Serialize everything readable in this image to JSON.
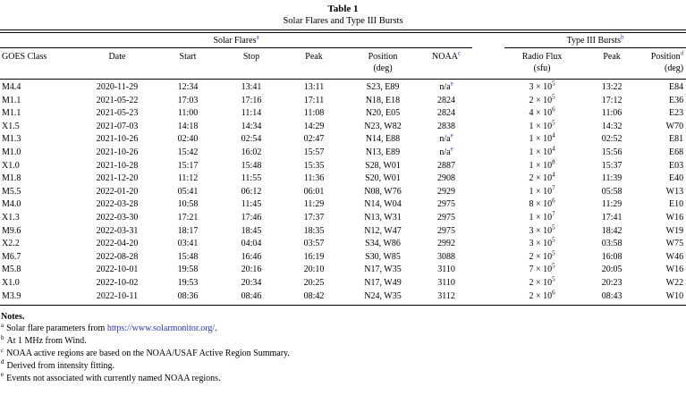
{
  "title": "Table 1",
  "subtitle": "Solar Flares and Type III Bursts",
  "colors": {
    "footnote_link_blue": "#2d35d4"
  },
  "groups": {
    "solar_flares": {
      "label": "Solar Flares",
      "sup": "a"
    },
    "type_iii_bursts": {
      "label": "Type III Bursts",
      "sup": "b"
    }
  },
  "columns": {
    "goes_class": "GOES Class",
    "date": "Date",
    "start": "Start",
    "stop": "Stop",
    "peak": "Peak",
    "position": {
      "line1": "Position",
      "line2": "(deg)"
    },
    "noaa": {
      "label": "NOAA",
      "sup": "c"
    },
    "radio_flux": {
      "line1": "Radio Flux",
      "line2": "(sfu)"
    },
    "burst_peak": "Peak",
    "burst_position": {
      "line1": "Position",
      "sup": "d",
      "line2": "(deg)"
    }
  },
  "rows": [
    {
      "goes": "M4.4",
      "date": "2020-11-29",
      "start": "12:34",
      "stop": "13:41",
      "peak": "13:11",
      "position": "S23, E89",
      "noaa": "n/a",
      "noaa_sup": "e",
      "flux_m": "3",
      "flux_e": "5",
      "burst_peak": "13:22",
      "burst_pos": "E84"
    },
    {
      "goes": "M1.1",
      "date": "2021-05-22",
      "start": "17:03",
      "stop": "17:16",
      "peak": "17:11",
      "position": "N18, E18",
      "noaa": "2824",
      "flux_m": "2",
      "flux_e": "5",
      "burst_peak": "17:12",
      "burst_pos": "E36"
    },
    {
      "goes": "M1.1",
      "date": "2021-05-23",
      "start": "11:00",
      "stop": "11:14",
      "peak": "11:08",
      "position": "N20, E05",
      "noaa": "2824",
      "flux_m": "4",
      "flux_e": "6",
      "burst_peak": "11:06",
      "burst_pos": "E23"
    },
    {
      "goes": "X1.5",
      "date": "2021-07-03",
      "start": "14:18",
      "stop": "14:34",
      "peak": "14:29",
      "position": "N23, W82",
      "noaa": "2838",
      "flux_m": "1",
      "flux_e": "5",
      "burst_peak": "14:32",
      "burst_pos": "W70"
    },
    {
      "goes": "M1.3",
      "date": "2021-10-26",
      "start": "02:40",
      "stop": "02:54",
      "peak": "02:47",
      "position": "N14, E88",
      "noaa": "n/a",
      "noaa_sup": "e",
      "flux_m": "1",
      "flux_e": "4",
      "burst_peak": "02:52",
      "burst_pos": "E81"
    },
    {
      "goes": "M1.0",
      "date": "2021-10-26",
      "start": "15:42",
      "stop": "16:02",
      "peak": "15:57",
      "position": "N13, E89",
      "noaa": "n/a",
      "noaa_sup": "e",
      "flux_m": "1",
      "flux_e": "4",
      "burst_peak": "15:56",
      "burst_pos": "E68"
    },
    {
      "goes": "X1.0",
      "date": "2021-10-28",
      "start": "15:17",
      "stop": "15:48",
      "peak": "15:35",
      "position": "S28, W01",
      "noaa": "2887",
      "flux_m": "1",
      "flux_e": "8",
      "burst_peak": "15:37",
      "burst_pos": "E03"
    },
    {
      "goes": "M1.8",
      "date": "2021-12-20",
      "start": "11:12",
      "stop": "11:55",
      "peak": "11:36",
      "position": "S20, W01",
      "noaa": "2908",
      "flux_m": "2",
      "flux_e": "4",
      "burst_peak": "11:39",
      "burst_pos": "E40"
    },
    {
      "goes": "M5.5",
      "date": "2022-01-20",
      "start": "05:41",
      "stop": "06:12",
      "peak": "06:01",
      "position": "N08, W76",
      "noaa": "2929",
      "flux_m": "1",
      "flux_e": "7",
      "burst_peak": "05:58",
      "burst_pos": "W13"
    },
    {
      "goes": "M4.0",
      "date": "2022-03-28",
      "start": "10:58",
      "stop": "11:45",
      "peak": "11:29",
      "position": "N14, W04",
      "noaa": "2975",
      "flux_m": "8",
      "flux_e": "6",
      "burst_peak": "11:29",
      "burst_pos": "E10"
    },
    {
      "goes": "X1.3",
      "date": "2022-03-30",
      "start": "17:21",
      "stop": "17:46",
      "peak": "17:37",
      "position": "N13, W31",
      "noaa": "2975",
      "flux_m": "1",
      "flux_e": "7",
      "burst_peak": "17:41",
      "burst_pos": "W16"
    },
    {
      "goes": "M9.6",
      "date": "2022-03-31",
      "start": "18:17",
      "stop": "18:45",
      "peak": "18:35",
      "position": "N12, W47",
      "noaa": "2975",
      "flux_m": "3",
      "flux_e": "5",
      "burst_peak": "18:42",
      "burst_pos": "W19"
    },
    {
      "goes": "X2.2",
      "date": "2022-04-20",
      "start": "03:41",
      "stop": "04:04",
      "peak": "03:57",
      "position": "S34, W86",
      "noaa": "2992",
      "flux_m": "3",
      "flux_e": "5",
      "burst_peak": "03:58",
      "burst_pos": "W75"
    },
    {
      "goes": "M6.7",
      "date": "2022-08-28",
      "start": "15:48",
      "stop": "16:46",
      "peak": "16:19",
      "position": "S30, W85",
      "noaa": "3088",
      "flux_m": "2",
      "flux_e": "5",
      "burst_peak": "16:08",
      "burst_pos": "W46"
    },
    {
      "goes": "M5.8",
      "date": "2022-10-01",
      "start": "19:58",
      "stop": "20:16",
      "peak": "20:10",
      "position": "N17, W35",
      "noaa": "3110",
      "flux_m": "7",
      "flux_e": "5",
      "burst_peak": "20:05",
      "burst_pos": "W16"
    },
    {
      "goes": "X1.0",
      "date": "2022-10-02",
      "start": "19:53",
      "stop": "20:34",
      "peak": "20:25",
      "position": "N17, W49",
      "noaa": "3110",
      "flux_m": "2",
      "flux_e": "5",
      "burst_peak": "20:23",
      "burst_pos": "W22"
    },
    {
      "goes": "M3.9",
      "date": "2022-10-11",
      "start": "08:36",
      "stop": "08:46",
      "peak": "08:42",
      "position": "N24, W35",
      "noaa": "3112",
      "flux_m": "2",
      "flux_e": "6",
      "burst_peak": "08:43",
      "burst_pos": "W10"
    }
  ],
  "flux_times_symbol": "×",
  "notes": {
    "heading": "Notes.",
    "items": [
      {
        "sup": "a",
        "text_before": "Solar flare parameters from ",
        "link": "https://www.solarmonitor.org/",
        "text_after": "."
      },
      {
        "sup": "b",
        "text": "At 1 MHz from Wind."
      },
      {
        "sup": "c",
        "text": "NOAA active regions are based on the NOAA/USAF Active Region Summary."
      },
      {
        "sup": "d",
        "text": "Derived from intensity fitting."
      },
      {
        "sup": "e",
        "text": "Events not associated with currently named NOAA regions."
      }
    ]
  }
}
